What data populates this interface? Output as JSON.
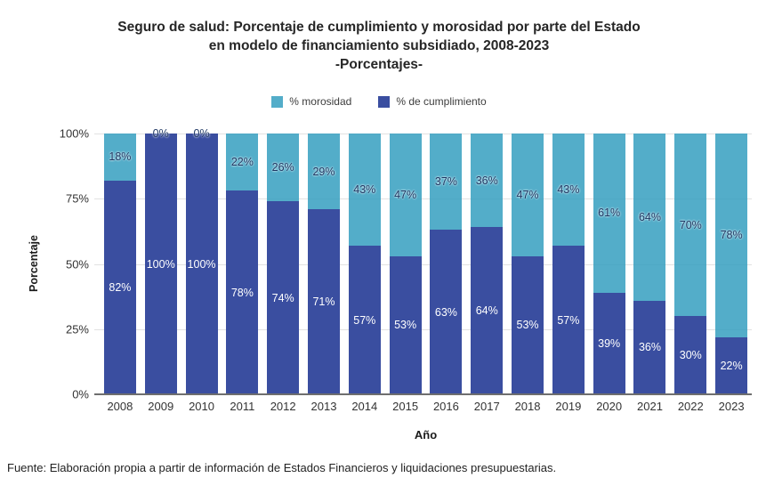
{
  "title": {
    "line1": "Seguro de salud: Porcentaje de cumplimiento y morosidad por parte del Estado",
    "line2": "en modelo de financiamiento subsidiado, 2008-2023",
    "line3": "-Porcentajes-"
  },
  "legend": [
    {
      "label": "% morosidad",
      "color": "#53adc9"
    },
    {
      "label": "% de cumplimiento",
      "color": "#3a4ea0"
    }
  ],
  "chart_data": {
    "type": "bar",
    "stacked": true,
    "categories": [
      "2008",
      "2009",
      "2010",
      "2011",
      "2012",
      "2013",
      "2014",
      "2015",
      "2016",
      "2017",
      "2018",
      "2019",
      "2020",
      "2021",
      "2022",
      "2023"
    ],
    "series": [
      {
        "name": "% de cumplimiento",
        "color": "#3a4ea0",
        "label_color": "#ffffff",
        "values": [
          82,
          100,
          100,
          78,
          74,
          71,
          57,
          53,
          63,
          64,
          53,
          57,
          39,
          36,
          30,
          22
        ]
      },
      {
        "name": "% morosidad",
        "color": "#53adc9",
        "label_color": "#1f3864",
        "values": [
          18,
          0,
          0,
          22,
          26,
          29,
          43,
          47,
          37,
          36,
          47,
          43,
          61,
          64,
          70,
          78
        ]
      }
    ],
    "title": "Seguro de salud: Porcentaje de cumplimiento y morosidad por parte del Estado en modelo de financiamiento subsidiado, 2008-2023 -Porcentajes-",
    "xlabel": "Año",
    "ylabel": "Porcentaje",
    "y_ticks": [
      "0%",
      "25%",
      "50%",
      "75%",
      "100%"
    ],
    "ylim": [
      0,
      100
    ],
    "grid": true,
    "legend_position": "top"
  },
  "footer": "Fuente: Elaboración propia a partir de información de Estados Financieros y liquidaciones presupuestarias."
}
